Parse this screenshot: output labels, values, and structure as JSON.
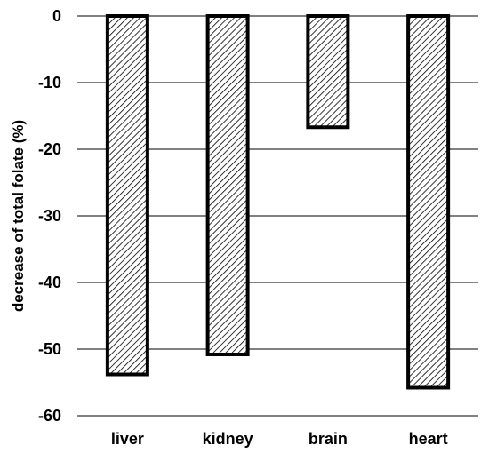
{
  "chart_data": {
    "type": "bar",
    "categories": [
      "liver",
      "kidney",
      "brain",
      "heart"
    ],
    "values": [
      -53.8,
      -50.8,
      -16.7,
      -55.8
    ],
    "title": "",
    "xlabel": "",
    "ylabel": "decrease of total folate (%)",
    "ylim": [
      -60,
      0
    ],
    "yticks": [
      "0",
      "-10",
      "-20",
      "-30",
      "-40",
      "-50",
      "-60"
    ],
    "grid": true,
    "legend": "none",
    "bar_fill": "hatched diagonal",
    "colors": {
      "bar_outline": "#000000",
      "hatch": "#000000",
      "grid": "#000000",
      "background": "#ffffff"
    }
  }
}
